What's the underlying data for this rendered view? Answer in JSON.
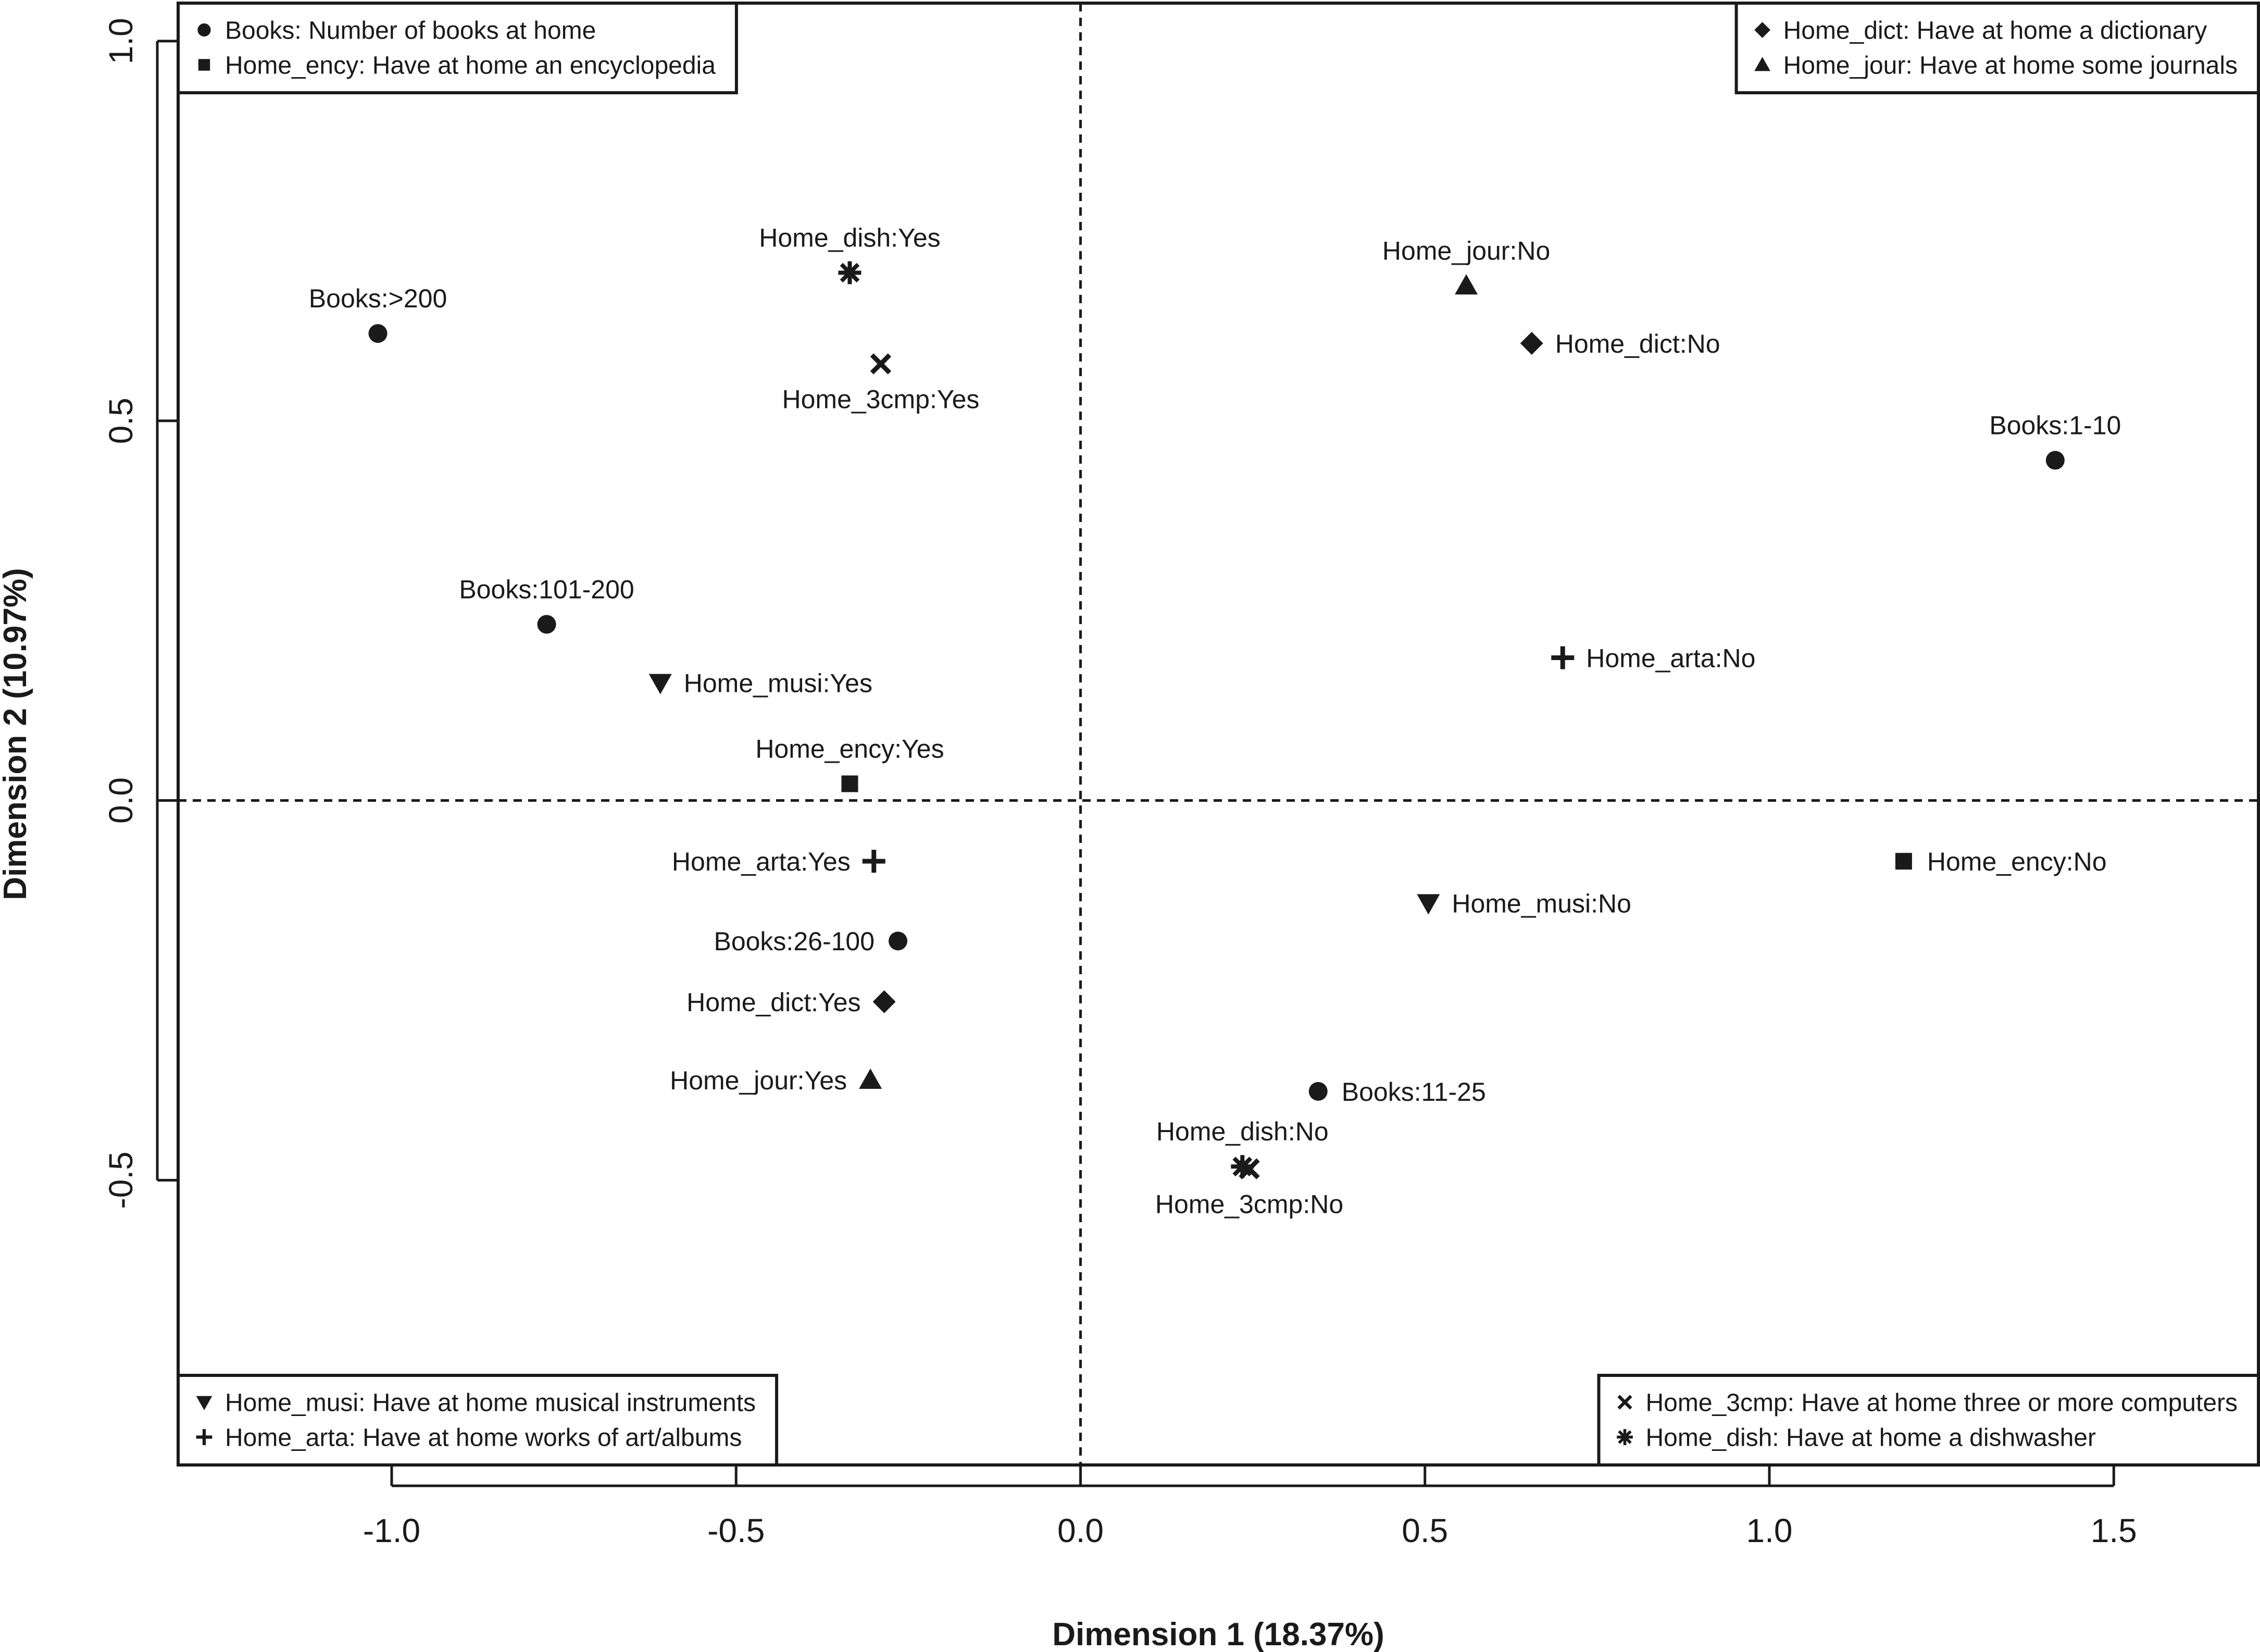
{
  "chart_data": {
    "type": "scatter",
    "title": "",
    "xlabel": "Dimension 1 (18.37%)",
    "ylabel": "Dimension 2 (10.97%)",
    "xlim": [
      -1.31,
      1.71
    ],
    "ylim": [
      -0.875,
      1.05
    ],
    "xticks": [
      -1.0,
      -0.5,
      0.0,
      0.5,
      1.0,
      1.5
    ],
    "yticks": [
      -0.5,
      0.0,
      0.5,
      1.0
    ],
    "reference_lines": {
      "x": 0,
      "y": 0
    },
    "points": [
      {
        "label": "Books:>200",
        "x": -1.02,
        "y": 0.615,
        "marker": "circle",
        "label_pos": "above"
      },
      {
        "label": "Books:101-200",
        "x": -0.775,
        "y": 0.232,
        "marker": "circle",
        "label_pos": "above"
      },
      {
        "label": "Books:26-100",
        "x": -0.265,
        "y": -0.185,
        "marker": "circle",
        "label_pos": "left"
      },
      {
        "label": "Books:11-25",
        "x": 0.345,
        "y": -0.383,
        "marker": "circle",
        "label_pos": "right"
      },
      {
        "label": "Books:1-10",
        "x": 1.415,
        "y": 0.448,
        "marker": "circle",
        "label_pos": "above"
      },
      {
        "label": "Home_ency:Yes",
        "x": -0.335,
        "y": 0.022,
        "marker": "square",
        "label_pos": "above"
      },
      {
        "label": "Home_ency:No",
        "x": 1.195,
        "y": -0.08,
        "marker": "square",
        "label_pos": "right"
      },
      {
        "label": "Home_dict:Yes",
        "x": -0.285,
        "y": -0.265,
        "marker": "diamond",
        "label_pos": "left"
      },
      {
        "label": "Home_dict:No",
        "x": 0.655,
        "y": 0.602,
        "marker": "diamond",
        "label_pos": "right"
      },
      {
        "label": "Home_jour:Yes",
        "x": -0.305,
        "y": -0.368,
        "marker": "triangle",
        "label_pos": "left"
      },
      {
        "label": "Home_jour:No",
        "x": 0.56,
        "y": 0.678,
        "marker": "triangle",
        "label_pos": "above"
      },
      {
        "label": "Home_musi:Yes",
        "x": -0.61,
        "y": 0.155,
        "marker": "triangle-down",
        "label_pos": "right"
      },
      {
        "label": "Home_musi:No",
        "x": 0.505,
        "y": -0.135,
        "marker": "triangle-down",
        "label_pos": "right"
      },
      {
        "label": "Home_arta:Yes",
        "x": -0.3,
        "y": -0.08,
        "marker": "plus",
        "label_pos": "left"
      },
      {
        "label": "Home_arta:No",
        "x": 0.7,
        "y": 0.188,
        "marker": "plus",
        "label_pos": "right"
      },
      {
        "label": "Home_3cmp:Yes",
        "x": -0.29,
        "y": 0.575,
        "marker": "cross",
        "label_pos": "below"
      },
      {
        "label": "Home_3cmp:No",
        "x": 0.245,
        "y": -0.485,
        "marker": "cross",
        "label_pos": "below"
      },
      {
        "label": "Home_dish:Yes",
        "x": -0.335,
        "y": 0.695,
        "marker": "asterisk",
        "label_pos": "above"
      },
      {
        "label": "Home_dish:No",
        "x": 0.235,
        "y": -0.482,
        "marker": "asterisk",
        "label_pos": "above"
      }
    ],
    "legends": [
      {
        "position": "top-left",
        "entries": [
          {
            "marker": "circle",
            "text": "Books: Number of books at home"
          },
          {
            "marker": "square",
            "text": "Home_ency: Have at home an encyclopedia"
          }
        ]
      },
      {
        "position": "top-right",
        "entries": [
          {
            "marker": "diamond",
            "text": "Home_dict: Have at home a dictionary"
          },
          {
            "marker": "triangle",
            "text": "Home_jour: Have at home some journals"
          }
        ]
      },
      {
        "position": "bottom-left",
        "entries": [
          {
            "marker": "triangle-down",
            "text": "Home_musi: Have at home musical instruments"
          },
          {
            "marker": "plus",
            "text": "Home_arta: Have at home works of art/albums"
          }
        ]
      },
      {
        "position": "bottom-right",
        "entries": [
          {
            "marker": "cross",
            "text": "Home_3cmp: Have at home three or more computers"
          },
          {
            "marker": "asterisk",
            "text": "Home_dish: Have at home a dishwasher"
          }
        ]
      }
    ]
  }
}
